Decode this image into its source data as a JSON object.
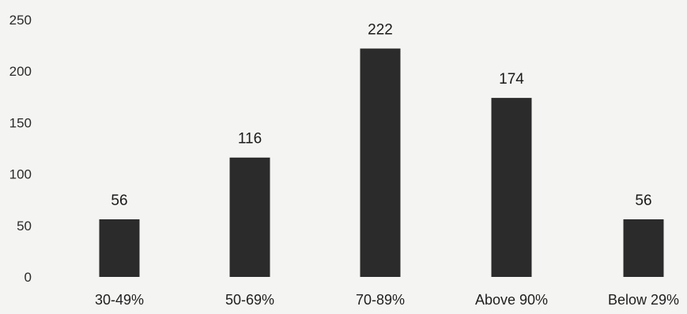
{
  "chart_data": {
    "type": "bar",
    "title": "",
    "xlabel": "",
    "ylabel": "",
    "categories": [
      "30-49%",
      "50-69%",
      "70-89%",
      "Above 90%",
      "Below 29%"
    ],
    "values": [
      56,
      116,
      222,
      174,
      56
    ],
    "data_labels": [
      "56",
      "116",
      "222",
      "174",
      "56"
    ],
    "ylim": [
      0,
      250
    ],
    "yticks": [
      0,
      50,
      100,
      150,
      200,
      250
    ],
    "grid": false,
    "legend": "none",
    "bar_color": "#2b2b2b"
  }
}
